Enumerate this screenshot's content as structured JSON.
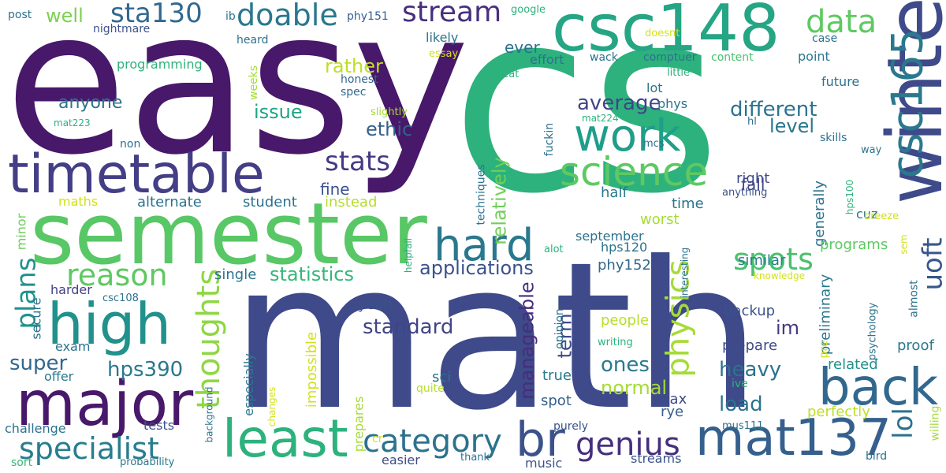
{
  "words": [
    {
      "text": "easy",
      "color": "#48186a"
    },
    {
      "text": "cs",
      "color": "#2db27d"
    },
    {
      "text": "math",
      "color": "#3e4a89"
    },
    {
      "text": "semester",
      "color": "#58c765"
    },
    {
      "text": "csc148",
      "color": "#25a584"
    },
    {
      "text": "timetable",
      "color": "#433e85"
    },
    {
      "text": "winter",
      "color": "#3e4a89"
    },
    {
      "text": "major",
      "color": "#48186a"
    },
    {
      "text": "high",
      "color": "#21918c"
    },
    {
      "text": "least",
      "color": "#2db27d"
    },
    {
      "text": "back",
      "color": "#31688e"
    },
    {
      "text": "mat137",
      "color": "#35608d"
    },
    {
      "text": "csc165",
      "color": "#2a788e"
    },
    {
      "text": "hard",
      "color": "#2a788e"
    },
    {
      "text": "work",
      "color": "#1f9e89"
    },
    {
      "text": "science",
      "color": "#5ec962"
    },
    {
      "text": "br",
      "color": "#3b528b"
    },
    {
      "text": "physics",
      "color": "#a5db36"
    },
    {
      "text": "thoughts",
      "color": "#8fd744"
    },
    {
      "text": "category",
      "color": "#2c728e"
    },
    {
      "text": "genius",
      "color": "#472f7d"
    },
    {
      "text": "specialist",
      "color": "#287d8e"
    },
    {
      "text": "data",
      "color": "#5ec962"
    },
    {
      "text": "stream",
      "color": "#472f7d"
    },
    {
      "text": "doable",
      "color": "#2a788e"
    },
    {
      "text": "sta130",
      "color": "#31688e"
    },
    {
      "text": "reason",
      "color": "#5ec962"
    },
    {
      "text": "spots",
      "color": "#4ac16d"
    },
    {
      "text": "plans",
      "color": "#21918c"
    },
    {
      "text": "uoft",
      "color": "#39568c"
    },
    {
      "text": "lol",
      "color": "#2c728e"
    },
    {
      "text": "stats",
      "color": "#443983"
    },
    {
      "text": "statistics",
      "color": "#35b779"
    },
    {
      "text": "applications",
      "color": "#3b528b"
    },
    {
      "text": "different",
      "color": "#2c728e"
    },
    {
      "text": "ones",
      "color": "#297b8e"
    },
    {
      "text": "heavy",
      "color": "#2c728e"
    },
    {
      "text": "hps390",
      "color": "#2a788e"
    },
    {
      "text": "super",
      "color": "#31688e"
    },
    {
      "text": "average",
      "color": "#414487"
    },
    {
      "text": "standard",
      "color": "#414487"
    },
    {
      "text": "load",
      "color": "#2c728e"
    },
    {
      "text": "normal",
      "color": "#a5db36"
    },
    {
      "text": "level",
      "color": "#2a788e"
    },
    {
      "text": "manageable",
      "color": "#472d7b"
    },
    {
      "text": "relatively",
      "color": "#70cf57"
    },
    {
      "text": "ethic",
      "color": "#35608d"
    },
    {
      "text": "term",
      "color": "#3e4a89"
    },
    {
      "text": "im",
      "color": "#443983"
    },
    {
      "text": "issue",
      "color": "#20a386"
    },
    {
      "text": "anyone",
      "color": "#2c728e"
    },
    {
      "text": "well",
      "color": "#7ad151"
    },
    {
      "text": "rather",
      "color": "#bddf26"
    },
    {
      "text": "ever",
      "color": "#2c728e"
    },
    {
      "text": "fine",
      "color": "#3b528b"
    },
    {
      "text": "fall",
      "color": "#414487"
    },
    {
      "text": "impossible",
      "color": "#d2e21b"
    },
    {
      "text": "people",
      "color": "#b8de29"
    },
    {
      "text": "backup",
      "color": "#3b528b"
    },
    {
      "text": "prepare",
      "color": "#3e4a89"
    },
    {
      "text": "sci",
      "color": "#2c728e"
    },
    {
      "text": "true",
      "color": "#2a788e"
    },
    {
      "text": "spot",
      "color": "#35608d"
    },
    {
      "text": "max",
      "color": "#3e4a89"
    },
    {
      "text": "rye",
      "color": "#35608d"
    },
    {
      "text": "perfectly",
      "color": "#bddf26"
    },
    {
      "text": "preliminary",
      "color": "#2a788e"
    },
    {
      "text": "related",
      "color": "#21918c"
    },
    {
      "text": "proof",
      "color": "#2a788e"
    },
    {
      "text": "generally",
      "color": "#2c728e"
    },
    {
      "text": "programs",
      "color": "#5ec962"
    },
    {
      "text": "similar",
      "color": "#287d8e"
    },
    {
      "text": "yeah",
      "color": "#3b528b"
    },
    {
      "text": "single",
      "color": "#2c728e"
    },
    {
      "text": "alternate",
      "color": "#2c728e"
    },
    {
      "text": "student",
      "color": "#2c728e"
    },
    {
      "text": "instead",
      "color": "#b5de2b"
    },
    {
      "text": "time",
      "color": "#2c728e"
    },
    {
      "text": "worst",
      "color": "#a5db36"
    },
    {
      "text": "half",
      "color": "#2a788e"
    },
    {
      "text": "right",
      "color": "#3e4a89"
    },
    {
      "text": "september",
      "color": "#2c728e"
    },
    {
      "text": "hps120",
      "color": "#2c728e"
    },
    {
      "text": "phy152",
      "color": "#31688e"
    },
    {
      "text": "maths",
      "color": "#d2e21b"
    },
    {
      "text": "minor",
      "color": "#6ccd5a"
    },
    {
      "text": "harder",
      "color": "#433e85"
    },
    {
      "text": "secure",
      "color": "#2c728e"
    },
    {
      "text": "exam",
      "color": "#2c728e"
    },
    {
      "text": "offer",
      "color": "#2a788e"
    },
    {
      "text": "challenge",
      "color": "#2c728e"
    },
    {
      "text": "tests",
      "color": "#3b528b"
    },
    {
      "text": "easier",
      "color": "#3e4a89"
    },
    {
      "text": "music",
      "color": "#3b528b"
    },
    {
      "text": "thank",
      "color": "#2c728e"
    },
    {
      "text": "sort",
      "color": "#35b779"
    },
    {
      "text": "probability",
      "color": "#2a788e"
    },
    {
      "text": "especially",
      "color": "#2a788e"
    },
    {
      "text": "quite",
      "color": "#b5de2b"
    },
    {
      "text": "prepares",
      "color": "#a5db36"
    },
    {
      "text": "changes",
      "color": "#d2e21b"
    },
    {
      "text": "background",
      "color": "#2c728e"
    },
    {
      "text": "cr",
      "color": "#d2e21b"
    },
    {
      "text": "purely",
      "color": "#3b528b"
    },
    {
      "text": "streams",
      "color": "#3b528b"
    },
    {
      "text": "mus111",
      "color": "#2c728e"
    },
    {
      "text": "bird",
      "color": "#2c728e"
    },
    {
      "text": "willing",
      "color": "#a5db36"
    },
    {
      "text": "post",
      "color": "#2c728e"
    },
    {
      "text": "nightmare",
      "color": "#3b528b"
    },
    {
      "text": "ib",
      "color": "#2c728e"
    },
    {
      "text": "phy151",
      "color": "#35608d"
    },
    {
      "text": "heard",
      "color": "#2c728e"
    },
    {
      "text": "programming",
      "color": "#2db27d"
    },
    {
      "text": "weeks",
      "color": "#a5db36"
    },
    {
      "text": "honest",
      "color": "#31688e"
    },
    {
      "text": "spec",
      "color": "#31688e"
    },
    {
      "text": "mat223",
      "color": "#2db27d"
    },
    {
      "text": "non",
      "color": "#2c728e"
    },
    {
      "text": "slightly",
      "color": "#a5db36"
    },
    {
      "text": "likely",
      "color": "#2c728e"
    },
    {
      "text": "essay",
      "color": "#d2e21b"
    },
    {
      "text": "google",
      "color": "#2db27d"
    },
    {
      "text": "doesnt",
      "color": "#d2e21b"
    },
    {
      "text": "case",
      "color": "#2c728e"
    },
    {
      "text": "effort",
      "color": "#2c728e"
    },
    {
      "text": "wack",
      "color": "#2c728e"
    },
    {
      "text": "comptuer",
      "color": "#2c728e"
    },
    {
      "text": "content",
      "color": "#4ac16d"
    },
    {
      "text": "point",
      "color": "#2a788e"
    },
    {
      "text": "great",
      "color": "#2db27d"
    },
    {
      "text": "little",
      "color": "#2db27d"
    },
    {
      "text": "future",
      "color": "#2c728e"
    },
    {
      "text": "lot",
      "color": "#2c728e"
    },
    {
      "text": "phys",
      "color": "#2c728e"
    },
    {
      "text": "mat224",
      "color": "#2db27d"
    },
    {
      "text": "hl",
      "color": "#2c728e"
    },
    {
      "text": "skills",
      "color": "#2c728e"
    },
    {
      "text": "fuckin",
      "color": "#2c728e"
    },
    {
      "text": "mcs",
      "color": "#2c728e"
    },
    {
      "text": "techniques",
      "color": "#2c728e"
    },
    {
      "text": "way",
      "color": "#2c728e"
    },
    {
      "text": "anything",
      "color": "#3b528b"
    },
    {
      "text": "hps100",
      "color": "#2db27d"
    },
    {
      "text": "cuz",
      "color": "#2c728e"
    },
    {
      "text": "breeze",
      "color": "#d2e21b"
    },
    {
      "text": "sem",
      "color": "#d2e21b"
    },
    {
      "text": "knowledge",
      "color": "#d2e21b"
    },
    {
      "text": "almost",
      "color": "#2c728e"
    },
    {
      "text": "pre",
      "color": "#d2e21b"
    },
    {
      "text": "psychology",
      "color": "#2c728e"
    },
    {
      "text": "helpfall",
      "color": "#2db27d"
    },
    {
      "text": "alot",
      "color": "#2db27d"
    },
    {
      "text": "interesting",
      "color": "#2c728e"
    },
    {
      "text": "opinion",
      "color": "#2c728e"
    },
    {
      "text": "writing",
      "color": "#2db27d"
    },
    {
      "text": "csc108",
      "color": "#2c728e"
    },
    {
      "text": "ive",
      "color": "#2db27d"
    }
  ]
}
